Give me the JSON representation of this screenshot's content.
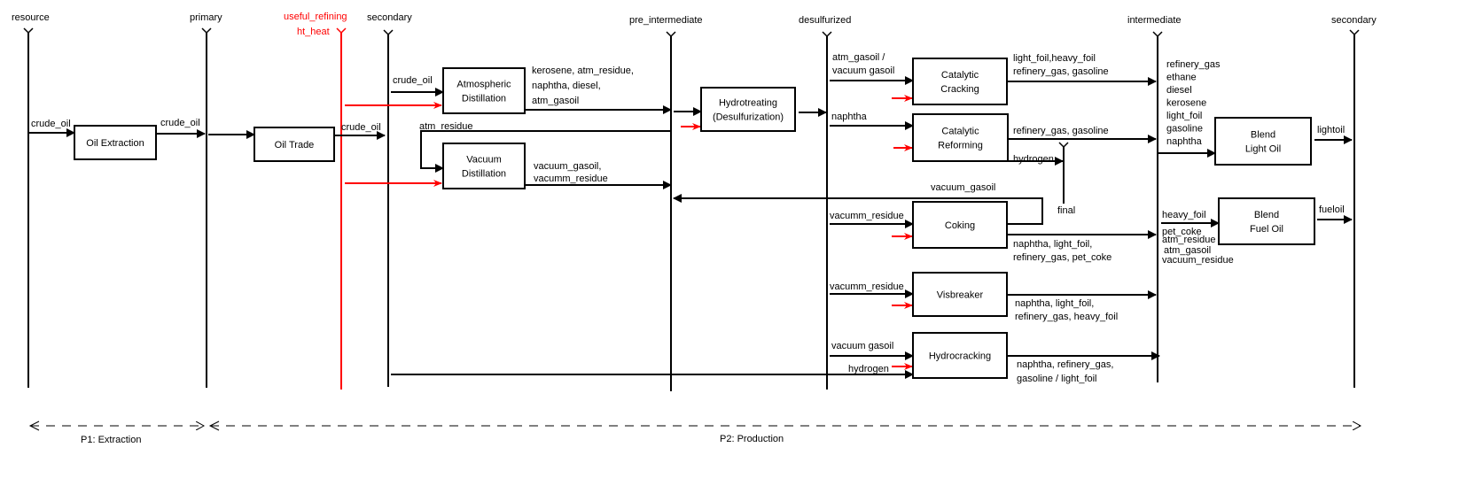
{
  "colors": {
    "line": "#000000",
    "heat": "#ff0000"
  },
  "levels": {
    "resource": "resource",
    "primary": "primary",
    "heat_line1": "useful_refining",
    "heat_line2": "ht_heat",
    "secondary": "secondary",
    "pre_intermediate": "pre_intermediate",
    "desulfurized": "desulfurized",
    "intermediate": "intermediate",
    "secondary_end": "secondary",
    "final": "final"
  },
  "processes": {
    "oil_extraction": [
      "Oil Extraction"
    ],
    "oil_trade": [
      "Oil Trade"
    ],
    "atm_distillation": [
      "Atmospheric",
      "Distillation"
    ],
    "vac_distillation": [
      "Vacuum",
      "Distillation"
    ],
    "hydrotreating": [
      "Hydrotreating",
      "(Desulfurization)"
    ],
    "cat_cracking": [
      "Catalytic",
      "Cracking"
    ],
    "cat_reforming": [
      "Catalytic",
      "Reforming"
    ],
    "coking": [
      "Coking"
    ],
    "visbreaker": [
      "Visbreaker"
    ],
    "hydrocracking": [
      "Hydrocracking"
    ],
    "blend_light": [
      "Blend",
      "Light Oil"
    ],
    "blend_fuel": [
      "Blend",
      "Fuel Oil"
    ]
  },
  "flows": {
    "crude1": "crude_oil",
    "crude2": "crude_oil",
    "crude3": "crude_oil",
    "crude4": "crude_oil",
    "atm_out": [
      "kerosene,  atm_residue,",
      "naphtha,  diesel,",
      "atm_gasoil"
    ],
    "atm_residue": "atm_residue",
    "vac_out": [
      "vacuum_gasoil,",
      "vacumm_residue"
    ],
    "cc_in": [
      "atm_gasoil /",
      "vacuum gasoil"
    ],
    "cr_in": "naphtha",
    "cc_out": [
      "light_foil,heavy_foil",
      "refinery_gas, gasoline"
    ],
    "cr_out": "refinery_gas, gasoline",
    "cr_h2": "hydrogen",
    "coking_recycle": "vacuum_gasoil",
    "coking_in": "vacumm_residue",
    "coking_out": [
      "naphtha, light_foil,",
      "refinery_gas, pet_coke"
    ],
    "visb_in": "vacumm_residue",
    "visb_out": [
      "naphtha, light_foil,",
      "refinery_gas, heavy_foil"
    ],
    "hc_in": "vacuum gasoil",
    "hc_h2": "hydrogen",
    "hc_out": [
      "naphtha, refinery_gas,",
      "gasoline / light_foil"
    ],
    "light_in": [
      "refinery_gas",
      "ethane",
      "diesel",
      "kerosene",
      "light_foil",
      "gasoline",
      "naphtha"
    ],
    "fuel_in": [
      "heavy_foil",
      "pet_coke",
      "atm_residue",
      "atm_gasoil",
      "vacuum_residue"
    ],
    "lightoil": "lightoil",
    "fueloil": "fueloil"
  },
  "periods": {
    "p1": "P1: Extraction",
    "p2": "P2: Production"
  }
}
